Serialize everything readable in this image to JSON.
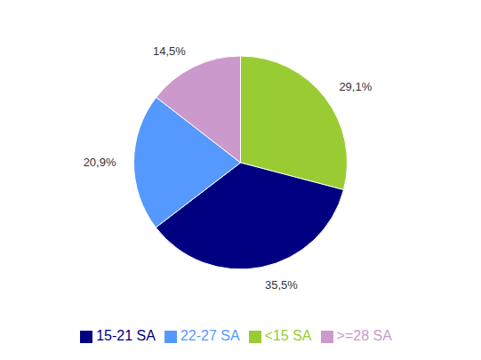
{
  "chart_data": {
    "type": "pie",
    "categories": [
      "<15 SA",
      "15-21 SA",
      "22-27 SA",
      ">=28 SA"
    ],
    "values": [
      29.1,
      35.5,
      20.9,
      14.5
    ],
    "value_labels": [
      "29,1%",
      "35,5%",
      "20,9%",
      "14,5%"
    ],
    "colors": [
      "#99cc33",
      "#000080",
      "#5599ff",
      "#cc99cc"
    ],
    "data_labels": true,
    "legend": "bottom"
  }
}
